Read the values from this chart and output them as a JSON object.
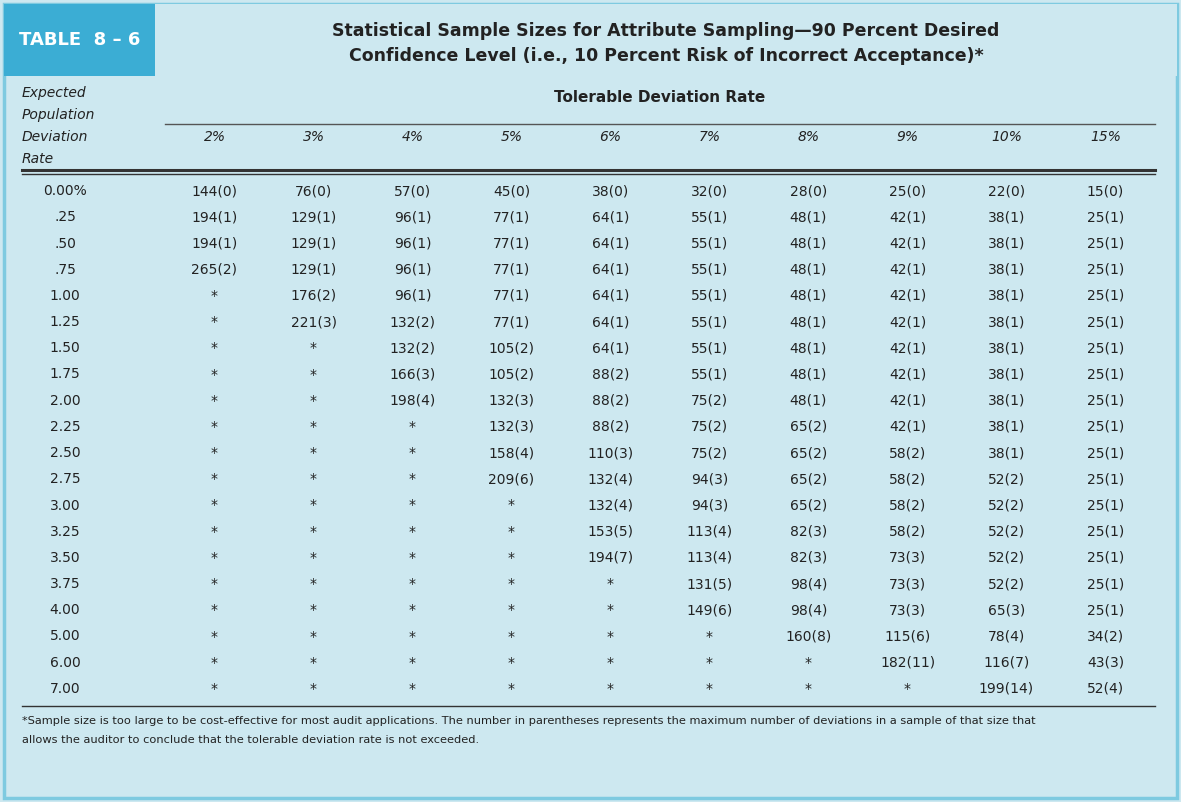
{
  "table_label": "TABLE  8 – 6",
  "title_line1": "Statistical Sample Sizes for Attribute Sampling—90 Percent Desired",
  "title_line2": "Confidence Level (i.e., 10 Percent Risk of Incorrect Acceptance)*",
  "col_header_center": "Tolerable Deviation Rate",
  "col_headers": [
    "2%",
    "3%",
    "4%",
    "5%",
    "6%",
    "7%",
    "8%",
    "9%",
    "10%",
    "15%"
  ],
  "left_header_lines": [
    "Expected",
    "Population",
    "Deviation",
    "Rate"
  ],
  "row_labels": [
    "0.00%",
    ".25",
    ".50",
    ".75",
    "1.00",
    "1.25",
    "1.50",
    "1.75",
    "2.00",
    "2.25",
    "2.50",
    "2.75",
    "3.00",
    "3.25",
    "3.50",
    "3.75",
    "4.00",
    "5.00",
    "6.00",
    "7.00"
  ],
  "data": [
    [
      "144(0)",
      "76(0)",
      "57(0)",
      "45(0)",
      "38(0)",
      "32(0)",
      "28(0)",
      "25(0)",
      "22(0)",
      "15(0)"
    ],
    [
      "194(1)",
      "129(1)",
      "96(1)",
      "77(1)",
      "64(1)",
      "55(1)",
      "48(1)",
      "42(1)",
      "38(1)",
      "25(1)"
    ],
    [
      "194(1)",
      "129(1)",
      "96(1)",
      "77(1)",
      "64(1)",
      "55(1)",
      "48(1)",
      "42(1)",
      "38(1)",
      "25(1)"
    ],
    [
      "265(2)",
      "129(1)",
      "96(1)",
      "77(1)",
      "64(1)",
      "55(1)",
      "48(1)",
      "42(1)",
      "38(1)",
      "25(1)"
    ],
    [
      "*",
      "176(2)",
      "96(1)",
      "77(1)",
      "64(1)",
      "55(1)",
      "48(1)",
      "42(1)",
      "38(1)",
      "25(1)"
    ],
    [
      "*",
      "221(3)",
      "132(2)",
      "77(1)",
      "64(1)",
      "55(1)",
      "48(1)",
      "42(1)",
      "38(1)",
      "25(1)"
    ],
    [
      "*",
      "*",
      "132(2)",
      "105(2)",
      "64(1)",
      "55(1)",
      "48(1)",
      "42(1)",
      "38(1)",
      "25(1)"
    ],
    [
      "*",
      "*",
      "166(3)",
      "105(2)",
      "88(2)",
      "55(1)",
      "48(1)",
      "42(1)",
      "38(1)",
      "25(1)"
    ],
    [
      "*",
      "*",
      "198(4)",
      "132(3)",
      "88(2)",
      "75(2)",
      "48(1)",
      "42(1)",
      "38(1)",
      "25(1)"
    ],
    [
      "*",
      "*",
      "*",
      "132(3)",
      "88(2)",
      "75(2)",
      "65(2)",
      "42(1)",
      "38(1)",
      "25(1)"
    ],
    [
      "*",
      "*",
      "*",
      "158(4)",
      "110(3)",
      "75(2)",
      "65(2)",
      "58(2)",
      "38(1)",
      "25(1)"
    ],
    [
      "*",
      "*",
      "*",
      "209(6)",
      "132(4)",
      "94(3)",
      "65(2)",
      "58(2)",
      "52(2)",
      "25(1)"
    ],
    [
      "*",
      "*",
      "*",
      "*",
      "132(4)",
      "94(3)",
      "65(2)",
      "58(2)",
      "52(2)",
      "25(1)"
    ],
    [
      "*",
      "*",
      "*",
      "*",
      "153(5)",
      "113(4)",
      "82(3)",
      "58(2)",
      "52(2)",
      "25(1)"
    ],
    [
      "*",
      "*",
      "*",
      "*",
      "194(7)",
      "113(4)",
      "82(3)",
      "73(3)",
      "52(2)",
      "25(1)"
    ],
    [
      "*",
      "*",
      "*",
      "*",
      "*",
      "131(5)",
      "98(4)",
      "73(3)",
      "52(2)",
      "25(1)"
    ],
    [
      "*",
      "*",
      "*",
      "*",
      "*",
      "149(6)",
      "98(4)",
      "73(3)",
      "65(3)",
      "25(1)"
    ],
    [
      "*",
      "*",
      "*",
      "*",
      "*",
      "*",
      "160(8)",
      "115(6)",
      "78(4)",
      "34(2)"
    ],
    [
      "*",
      "*",
      "*",
      "*",
      "*",
      "*",
      "*",
      "182(11)",
      "116(7)",
      "43(3)"
    ],
    [
      "*",
      "*",
      "*",
      "*",
      "*",
      "*",
      "*",
      "*",
      "199(14)",
      "52(4)"
    ]
  ],
  "footnote_line1": "*Sample size is too large to be cost-effective for most audit applications. The number in parentheses represents the maximum number of deviations in a sample of that size that",
  "footnote_line2": "allows the auditor to conclude that the tolerable deviation rate is not exceeded.",
  "bg_color": "#cde8f0",
  "header_bg": "#3badd4",
  "title_bg": "#cde8f0",
  "border_color": "#7ecae0",
  "text_color": "#222222",
  "header_text_color": "#ffffff"
}
